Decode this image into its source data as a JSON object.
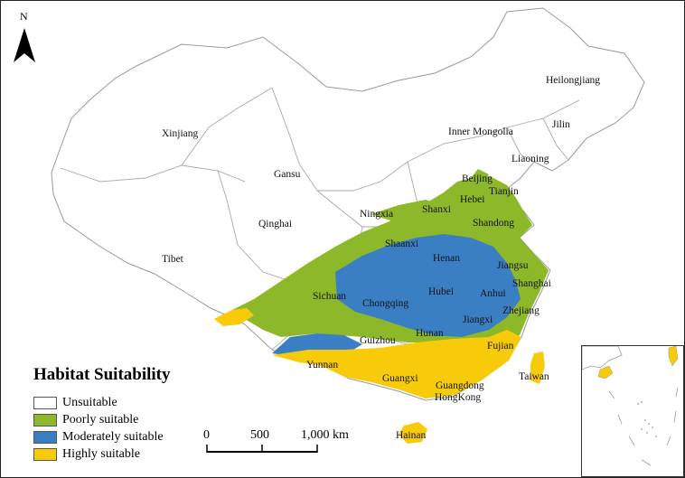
{
  "map": {
    "north_label": "N",
    "colors": {
      "unsuitable": "#ffffff",
      "poorly": "#8cb82a",
      "moderately": "#3a7ec4",
      "highly": "#f7cb0a",
      "border": "#9a9a9a"
    },
    "region_labels": {
      "xinjiang": "Xinjiang",
      "tibet": "Tibet",
      "qinghai": "Qinghai",
      "gansu": "Gansu",
      "inner_mongolia": "Inner Mongolia",
      "heilongjiang": "Heilongjiang",
      "jilin": "Jilin",
      "liaoning": "Liaoning",
      "beijing": "Beijing",
      "tianjin": "Tianjin",
      "hebei": "Hebei",
      "shanxi": "Shanxi",
      "ningxia": "Ningxia",
      "shandong": "Shandong",
      "shaanxi": "Shaanxi",
      "henan": "Henan",
      "jiangsu": "Jiangsu",
      "shanghai": "Shanghai",
      "anhui": "Anhui",
      "hubei": "Hubei",
      "sichuan": "Sichuan",
      "chongqing": "Chongqing",
      "zhejiang": "Zhejiang",
      "jiangxi": "Jiangxi",
      "hunan": "Hunan",
      "guizhou": "Guizhou",
      "fujian": "Fujian",
      "yunnan": "Yunnan",
      "guangxi": "Guangxi",
      "guangdong": "Guangdong",
      "hongkong": "HongKong",
      "taiwan": "Taiwan",
      "hainan": "Hainan"
    }
  },
  "legend": {
    "title": "Habitat Suitability",
    "items": [
      {
        "label": "Unsuitable",
        "color": "#ffffff"
      },
      {
        "label": "Poorly suitable",
        "color": "#8cb82a"
      },
      {
        "label": "Moderately suitable",
        "color": "#3a7ec4"
      },
      {
        "label": "Highly suitable",
        "color": "#f7cb0a"
      }
    ]
  },
  "scale_bar": {
    "ticks": [
      "0",
      "500",
      "1,000 km"
    ]
  }
}
